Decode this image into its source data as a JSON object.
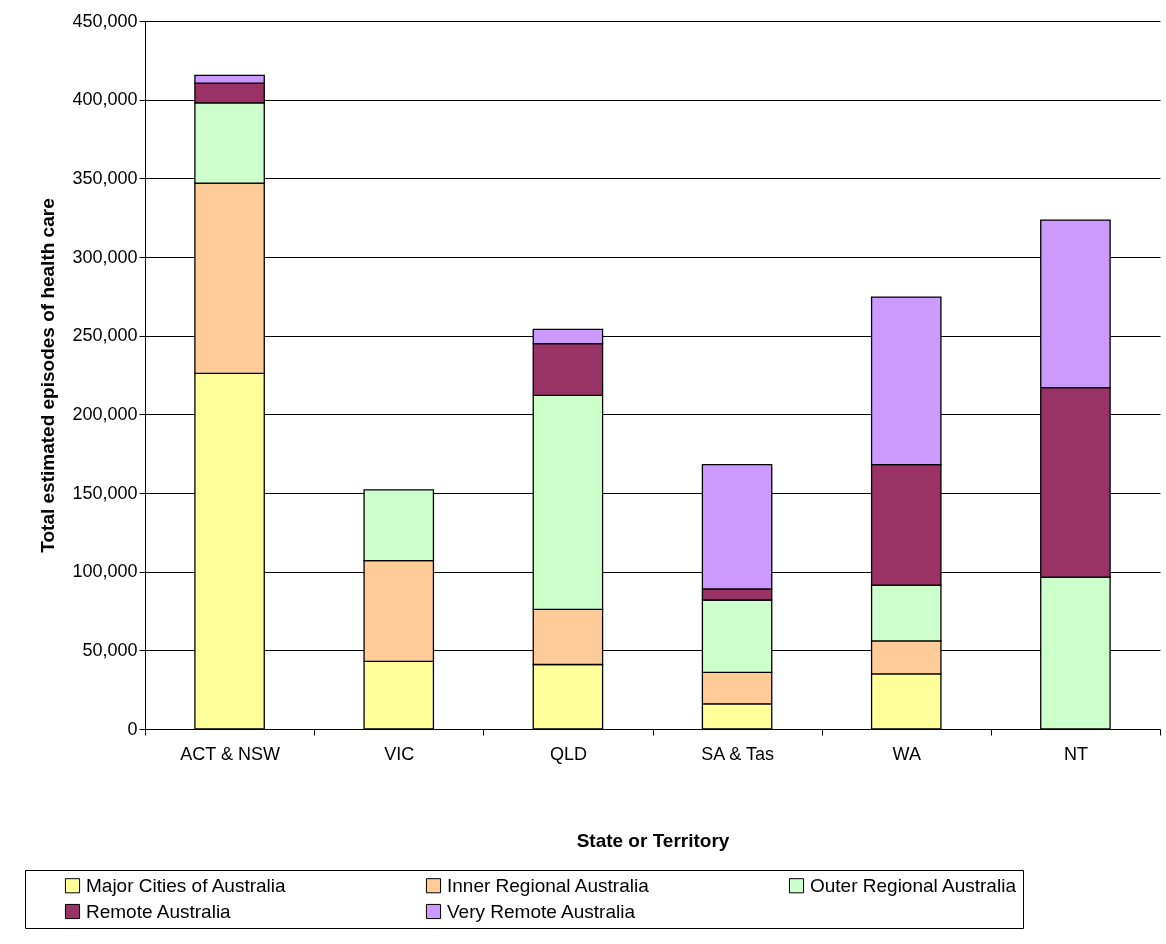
{
  "chart_data": {
    "type": "bar",
    "stacked": true,
    "xlabel": "State or Territory",
    "ylabel": "Total estimated episodes of health care",
    "categories": [
      "ACT & NSW",
      "VIC",
      "QLD",
      "SA & Tas",
      "WA",
      "NT"
    ],
    "series": [
      {
        "name": "Major Cities of Australia",
        "color": "#ffff99",
        "values": [
          226000,
          43000,
          41000,
          16000,
          35000,
          null
        ]
      },
      {
        "name": "Inner Regional Australia",
        "color": "#ffcc99",
        "values": [
          121000,
          64000,
          35000,
          20000,
          21000,
          null
        ]
      },
      {
        "name": "Outer Regional Australia",
        "color": "#ccffcc",
        "values": [
          51000,
          45000,
          136000,
          46000,
          35500,
          96500
        ]
      },
      {
        "name": "Remote Australia",
        "color": "#993366",
        "values": [
          12500,
          null,
          33000,
          7000,
          76500,
          120500
        ]
      },
      {
        "name": "Very Remote Australia",
        "color": "#cc99ff",
        "values": [
          5000,
          null,
          9000,
          79000,
          106500,
          106500
        ]
      }
    ],
    "ylim": [
      0,
      450000
    ],
    "yticks": [
      0,
      {
        "value": 50000,
        "label": "50,000"
      },
      {
        "value": 100000,
        "label": "100,000"
      },
      {
        "value": 150000,
        "label": "150,000"
      },
      {
        "value": 200000,
        "label": "200,000"
      },
      {
        "value": 250000,
        "label": "250,000"
      },
      {
        "value": 300000,
        "label": "300,000"
      },
      {
        "value": 350000,
        "label": "350,000"
      },
      {
        "value": 400000,
        "label": "400,000"
      },
      {
        "value": 450000,
        "label": "450,000"
      }
    ],
    "grid": "y",
    "legend": "bottom"
  }
}
